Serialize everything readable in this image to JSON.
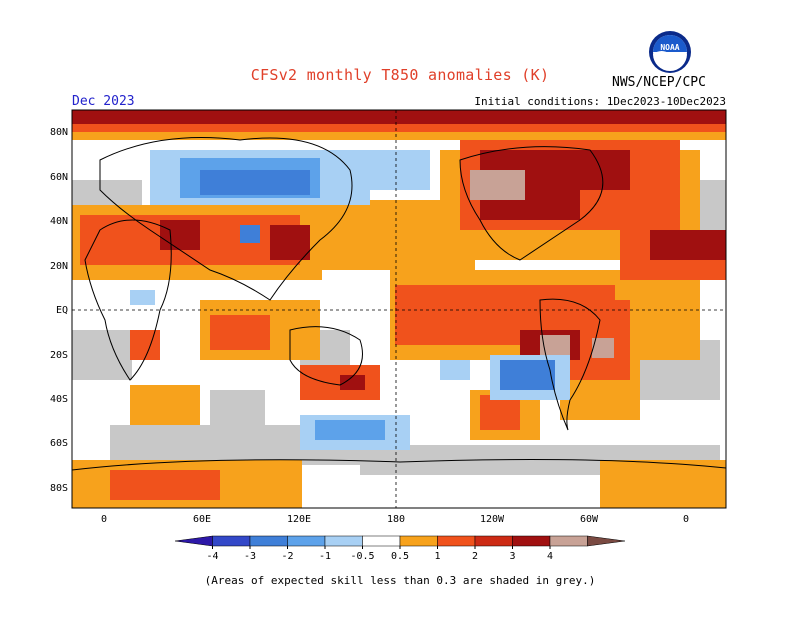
{
  "header": {
    "title": "CFSv2 monthly T850 anomalies (K)",
    "agency": "NWS/NCEP/CPC",
    "valid_month": "Dec 2023",
    "initial_conditions": "Initial conditions: 1Dec2023-10Dec2023",
    "logo_icon": "noaa-logo-icon",
    "logo_text": "NOAA"
  },
  "map": {
    "lat_labels": [
      "80N",
      "60N",
      "40N",
      "20N",
      "EQ",
      "20S",
      "40S",
      "60S",
      "80S"
    ],
    "lon_labels": [
      "0",
      "60E",
      "120E",
      "180",
      "120W",
      "60W",
      "0"
    ],
    "grey_meaning": "low-skill"
  },
  "legend": {
    "ticks": [
      "-4",
      "-3",
      "-2",
      "-1",
      "-0.5",
      "0.5",
      "1",
      "2",
      "3",
      "4"
    ],
    "colors": [
      "#2d18a8",
      "#3348c8",
      "#3f7fd8",
      "#5da2ea",
      "#a8d0f4",
      "#ffffff",
      "#f7a21c",
      "#f0521c",
      "#cc2a14",
      "#a01010",
      "#c8a296",
      "#7a4a42"
    ]
  },
  "palette": {
    "grey": "#c8c8c8",
    "light_orange": "#f7a21c",
    "orange_red": "#f0521c",
    "red": "#cc2a14",
    "dark_red": "#a01010",
    "tan": "#c8a296",
    "light_blue": "#a8d0f4",
    "blue": "#3f7fd8",
    "mid_blue": "#5da2ea"
  },
  "footnote": "(Areas of expected skill less than 0.3 are shaded in grey.)"
}
